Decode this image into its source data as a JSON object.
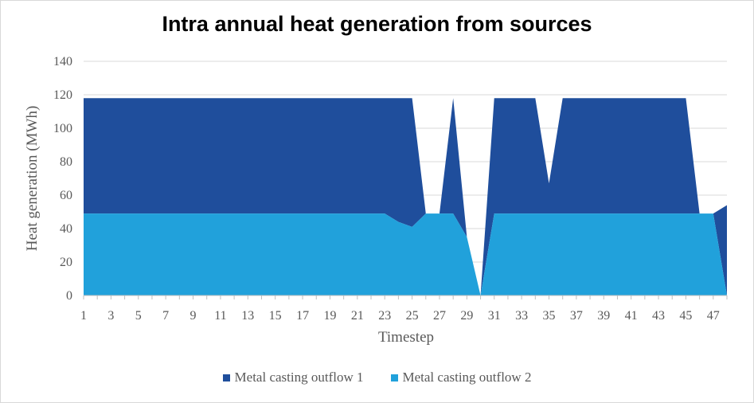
{
  "chart_data": {
    "type": "area",
    "title": "Intra annual heat generation from sources",
    "xlabel": "Timestep",
    "ylabel": "Heat generation (MWh)",
    "ylim": [
      0,
      140
    ],
    "yticks": [
      "0",
      "20",
      "40",
      "60",
      "80",
      "100",
      "120",
      "140"
    ],
    "x": [
      1,
      2,
      3,
      4,
      5,
      6,
      7,
      8,
      9,
      10,
      11,
      12,
      13,
      14,
      15,
      16,
      17,
      18,
      19,
      20,
      21,
      22,
      23,
      24,
      25,
      26,
      27,
      28,
      29,
      30,
      31,
      32,
      33,
      34,
      35,
      36,
      37,
      38,
      39,
      40,
      41,
      42,
      43,
      44,
      45,
      46,
      47,
      48
    ],
    "xtick_labels": [
      "1",
      "3",
      "5",
      "7",
      "9",
      "11",
      "13",
      "15",
      "17",
      "19",
      "21",
      "23",
      "25",
      "27",
      "29",
      "31",
      "33",
      "35",
      "37",
      "39",
      "41",
      "43",
      "45",
      "47"
    ],
    "grid": true,
    "legend_position": "bottom",
    "stacked": true,
    "series": [
      {
        "name": "Metal casting outflow 1",
        "color": "#1f4e9c",
        "values": [
          69,
          69,
          69,
          69,
          69,
          69,
          69,
          69,
          69,
          69,
          69,
          69,
          69,
          69,
          69,
          69,
          69,
          69,
          69,
          69,
          69,
          69,
          69,
          74,
          77,
          0,
          0,
          69,
          0,
          0,
          69,
          69,
          69,
          69,
          18,
          69,
          69,
          69,
          69,
          69,
          69,
          69,
          69,
          69,
          69,
          0,
          0,
          54
        ]
      },
      {
        "name": "Metal casting outflow 2",
        "color": "#21a1db",
        "values": [
          49,
          49,
          49,
          49,
          49,
          49,
          49,
          49,
          49,
          49,
          49,
          49,
          49,
          49,
          49,
          49,
          49,
          49,
          49,
          49,
          49,
          49,
          49,
          44,
          41,
          49,
          49,
          49,
          35,
          0,
          49,
          49,
          49,
          49,
          49,
          49,
          49,
          49,
          49,
          49,
          49,
          49,
          49,
          49,
          49,
          49,
          49,
          0
        ]
      }
    ]
  }
}
